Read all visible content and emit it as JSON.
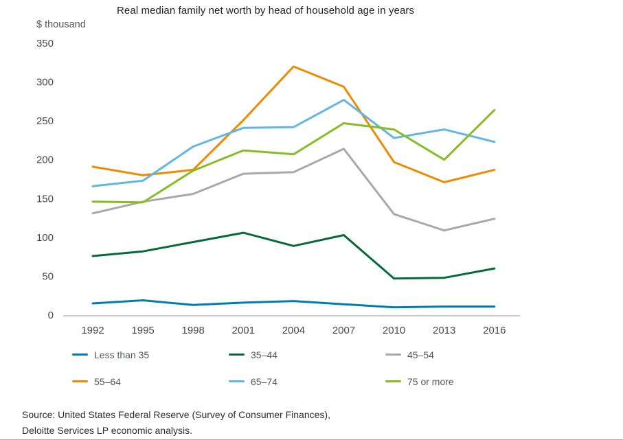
{
  "chart_data": {
    "type": "line",
    "title": "Real median family net worth by head of household age in years",
    "ylabel": "$ thousand",
    "xlabel": "",
    "ylim": [
      0,
      350
    ],
    "ytick_step": 50,
    "grid": false,
    "legend_position": "bottom",
    "categories": [
      "1992",
      "1995",
      "1998",
      "2001",
      "2004",
      "2007",
      "2010",
      "2013",
      "2016"
    ],
    "series": [
      {
        "name": "Less than 35",
        "color": "#007cb0",
        "values": [
          15,
          19,
          13,
          16,
          18,
          14,
          10,
          11,
          11
        ]
      },
      {
        "name": "35–44",
        "color": "#046a38",
        "values": [
          76,
          82,
          94,
          106,
          89,
          103,
          47,
          48,
          60
        ]
      },
      {
        "name": "45–54",
        "color": "#a7a8aa",
        "values": [
          131,
          146,
          156,
          182,
          184,
          214,
          130,
          109,
          124
        ]
      },
      {
        "name": "55–64",
        "color": "#ed8b00",
        "values": [
          191,
          180,
          187,
          251,
          320,
          294,
          197,
          171,
          187
        ]
      },
      {
        "name": "65–74",
        "color": "#62b5e5",
        "values": [
          166,
          173,
          217,
          241,
          242,
          277,
          228,
          239,
          223
        ]
      },
      {
        "name": "75 or more",
        "color": "#86bc25",
        "values": [
          146,
          145,
          186,
          212,
          207,
          247,
          239,
          200,
          264
        ]
      }
    ],
    "axis_line_color": "#c9c9c7"
  },
  "source": {
    "line1": "Source: United States Federal Reserve (Survey of Consumer Finances),",
    "line2": "Deloitte Services LP economic analysis."
  }
}
